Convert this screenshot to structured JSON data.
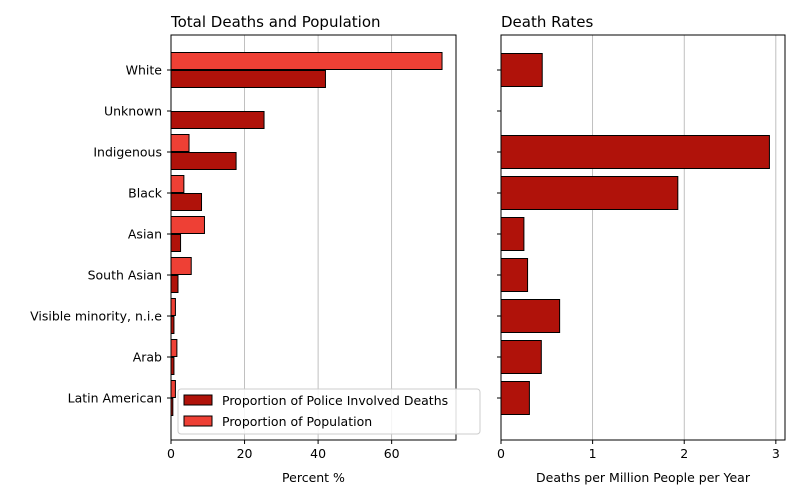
{
  "colors": {
    "deaths": "#b0120a",
    "population": "#ee4035",
    "edge": "#000000",
    "grid": "#b0b0b0"
  },
  "chart_data": [
    {
      "type": "bar",
      "orientation": "horizontal",
      "title": "Total Deaths and Population",
      "xlabel": "Percent %",
      "ylabel": "",
      "xlim": [
        0,
        77.5
      ],
      "xticks": [
        "0",
        "20",
        "40",
        "60"
      ],
      "xtick_values": [
        0,
        20,
        40,
        60
      ],
      "grid": "x",
      "legend_position": "bottom-right",
      "categories": [
        "White",
        "Unknown",
        "Indigenous",
        "Black",
        "Asian",
        "South Asian",
        "Visible minority, n.i.e",
        "Arab",
        "Latin American"
      ],
      "series": [
        {
          "name": "Proportion of Police Involved Deaths",
          "color_key": "deaths",
          "values": [
            42.0,
            25.3,
            17.7,
            8.3,
            2.6,
            1.9,
            0.8,
            0.8,
            0.5
          ]
        },
        {
          "name": "Proportion of Population",
          "color_key": "population",
          "values": [
            73.7,
            0.0,
            4.9,
            3.5,
            9.1,
            5.5,
            1.2,
            1.6,
            1.2
          ]
        }
      ]
    },
    {
      "type": "bar",
      "orientation": "horizontal",
      "title": "Death Rates",
      "xlabel": "Deaths per Million People per Year",
      "ylabel": "",
      "xlim": [
        0,
        3.1
      ],
      "xticks": [
        "0",
        "1",
        "2",
        "3"
      ],
      "xtick_values": [
        0,
        1,
        2,
        3
      ],
      "grid": "x",
      "categories": [
        "White",
        "Unknown",
        "Indigenous",
        "Black",
        "Asian",
        "South Asian",
        "Visible minority, n.i.e",
        "Arab",
        "Latin American"
      ],
      "series": [
        {
          "color_key": "deaths",
          "values": [
            0.45,
            0.0,
            2.93,
            1.93,
            0.25,
            0.29,
            0.64,
            0.44,
            0.31
          ]
        }
      ]
    }
  ]
}
